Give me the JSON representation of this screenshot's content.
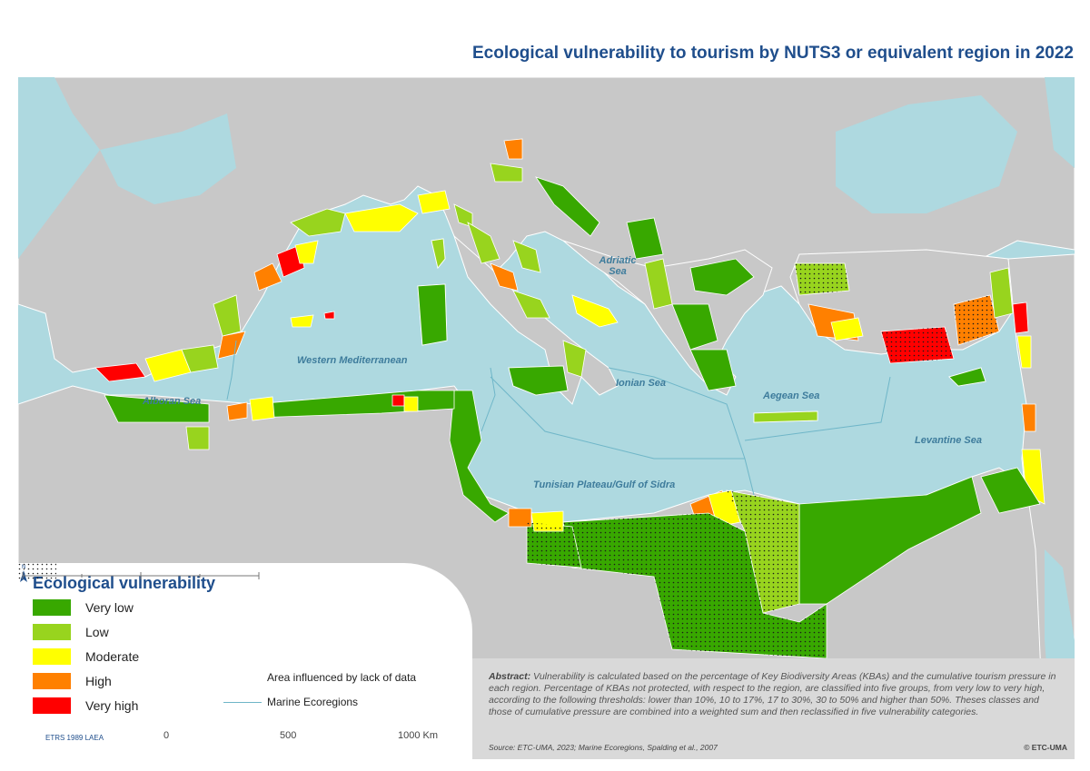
{
  "title": "Ecological vulnerability to tourism by NUTS3 or equivalent region in 2022",
  "colors": {
    "sea": "#aed9e0",
    "land": "#c8c8c8",
    "very_low": "#38a800",
    "low": "#98d41e",
    "moderate": "#ffff00",
    "high": "#ff8000",
    "very_high": "#ff0000"
  },
  "sea_labels": {
    "adriatic": "Adriatic Sea",
    "western_med": "Western Mediterranean",
    "alboran": "Alboran Sea",
    "ionian": "Ionian Sea",
    "aegean": "Aegean Sea",
    "levantine": "Levantine Sea",
    "tunisian": "Tunisian Plateau/Gulf of Sidra"
  },
  "legend": {
    "title": "Ecological vulnerability",
    "classes": [
      {
        "label": "Very low",
        "color": "#38a800"
      },
      {
        "label": "Low",
        "color": "#98d41e"
      },
      {
        "label": "Moderate",
        "color": "#ffff00"
      },
      {
        "label": "High",
        "color": "#ff8000"
      },
      {
        "label": "Very high",
        "color": "#ff0000"
      }
    ],
    "data_lack": "Area influenced by lack of data",
    "ecoregions": "Marine Ecoregions"
  },
  "crs": "ETRS 1989 LAEA",
  "scale": {
    "zero": "0",
    "mid": "500",
    "max": "1000 Km"
  },
  "abstract": {
    "heading": "Abstract:",
    "text": "Vulnerability is calculated based on the percentage of Key Biodiversity Areas (KBAs) and the cumulative tourism pressure in each region. Percentage of KBAs not protected, with respect to the region, are classified into five groups, from very low to very high, according to the following thresholds: lower than 10%, 10 to 17%, 17 to 30%, 30 to 50% and higher than 50%. Theses classes and those of cumulative pressure are combined into a weighted sum and then reclassified in five vulnerability categories."
  },
  "source": "Source: ETC-UMA, 2023; Marine Ecoregions, Spalding et al., 2007",
  "credit": "© ETC-UMA"
}
